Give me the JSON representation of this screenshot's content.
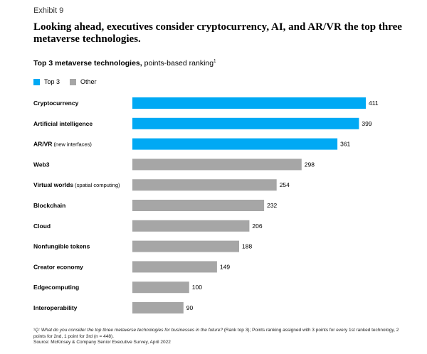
{
  "exhibit": "Exhibit 9",
  "headline": "Looking ahead, executives consider cryptocurrency, AI, and AR/VR the top three metaverse technologies.",
  "subtitle": {
    "bold": "Top 3 metaverse technologies,",
    "rest": " points-based ranking",
    "sup": "1"
  },
  "legend": [
    {
      "label": "Top 3",
      "color": "#00a9f4"
    },
    {
      "label": "Other",
      "color": "#a6a6a6"
    }
  ],
  "chart_data": {
    "type": "bar",
    "orientation": "horizontal",
    "title": "Top 3 metaverse technologies, points-based ranking",
    "categories": [
      {
        "main": "Cryptocurrency",
        "sub": ""
      },
      {
        "main": "Artificial intelligence",
        "sub": ""
      },
      {
        "main": "AR/VR",
        "sub": " (new interfaces)"
      },
      {
        "main": "Web3",
        "sub": ""
      },
      {
        "main": "Virtual worlds",
        "sub": " (spatial computing)"
      },
      {
        "main": "Blockchain",
        "sub": ""
      },
      {
        "main": "Cloud",
        "sub": ""
      },
      {
        "main": "Nonfungible tokens",
        "sub": ""
      },
      {
        "main": "Creator economy",
        "sub": ""
      },
      {
        "main": "Edgecomputing",
        "sub": ""
      },
      {
        "main": "Interoperability",
        "sub": ""
      }
    ],
    "values": [
      411,
      399,
      361,
      298,
      254,
      232,
      206,
      188,
      149,
      100,
      90
    ],
    "groups": [
      "Top 3",
      "Top 3",
      "Top 3",
      "Other",
      "Other",
      "Other",
      "Other",
      "Other",
      "Other",
      "Other",
      "Other"
    ],
    "xlim": [
      0,
      411
    ]
  },
  "footnote": {
    "q": "Q: What do you consider the top three metaverse technologies for businesses in the future?",
    "rest": " (Rank top 3); Points ranking assigned with 3 points for every 1st ranked technology, 2 points for 2nd, 1 point for 3rd (n = 448).",
    "source": "Source: McKinsey & Company Senior Executive Survey, April 2022"
  }
}
